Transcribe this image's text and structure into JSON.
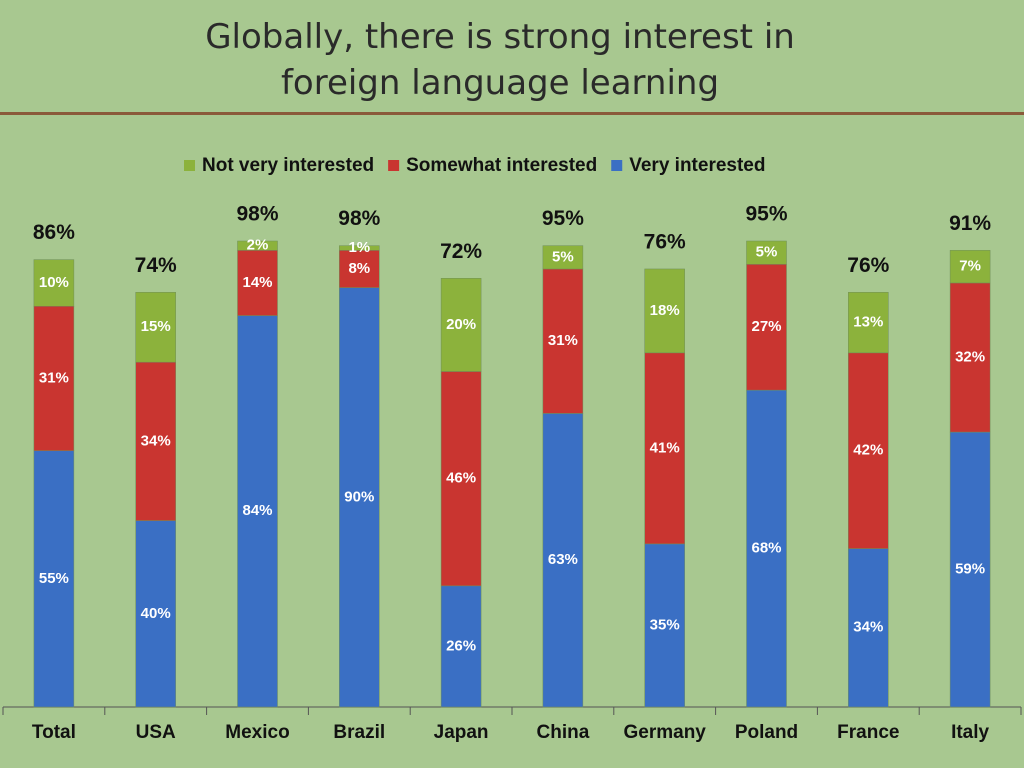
{
  "chart_data": {
    "type": "stacked_bar",
    "title": "Globally, there is strong interest in foreign language learning",
    "categories": [
      "Total",
      "USA",
      "Mexico",
      "Brazil",
      "Japan",
      "China",
      "Germany",
      "Poland",
      "France",
      "Italy"
    ],
    "ylim": [
      0,
      100
    ],
    "series": [
      {
        "name": "Very interested",
        "color": "#3a6fc4",
        "values": [
          55,
          40,
          84,
          90,
          26,
          63,
          35,
          68,
          34,
          59
        ],
        "value_labels": [
          "55%",
          "40%",
          "84%",
          "90%",
          "26%",
          "63%",
          "35%",
          "68%",
          "34%",
          "59%"
        ]
      },
      {
        "name": "Somewhat interested",
        "color": "#c93530",
        "values": [
          31,
          34,
          14,
          8,
          46,
          31,
          41,
          27,
          42,
          32
        ],
        "value_labels": [
          "31%",
          "34%",
          "14%",
          "8%",
          "46%",
          "31%",
          "41%",
          "27%",
          "42%",
          "32%"
        ]
      },
      {
        "name": "Not very interested",
        "color": "#8cb23c",
        "values": [
          10,
          15,
          2,
          1,
          20,
          5,
          18,
          5,
          13,
          7
        ],
        "value_labels": [
          "10%",
          "15%",
          "2%",
          "1%",
          "20%",
          "5%",
          "18%",
          "5%",
          "13%",
          "7%"
        ]
      }
    ],
    "totals": {
      "values": [
        86,
        74,
        98,
        98,
        72,
        95,
        76,
        95,
        76,
        91
      ],
      "value_labels": [
        "86%",
        "74%",
        "98%",
        "98%",
        "72%",
        "95%",
        "76%",
        "95%",
        "76%",
        "91%"
      ]
    }
  }
}
